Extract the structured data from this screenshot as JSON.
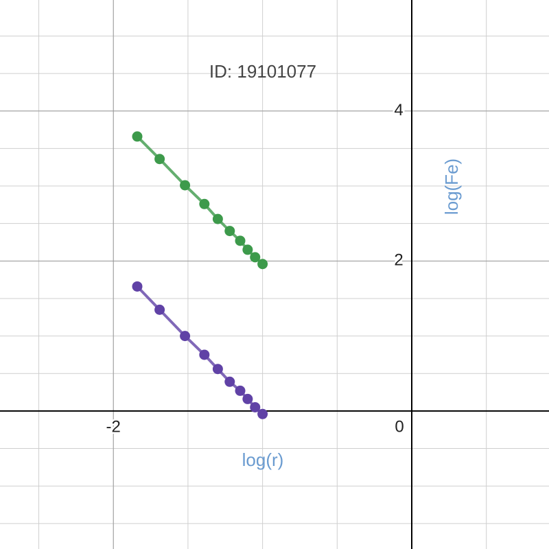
{
  "chart_data": {
    "type": "scatter",
    "title": "ID: 19101077",
    "x_label": "log(r)",
    "y_label": "log(Fe)",
    "label_color": "#6a9bd0",
    "xlim": [
      -2.76,
      0.92
    ],
    "ylim": [
      -1.84,
      5.48
    ],
    "xticks": [
      -2,
      0
    ],
    "yticks": [
      2,
      4
    ],
    "xgrid": [
      -2.5,
      -2,
      -1.5,
      -1,
      -0.5,
      0.5
    ],
    "ygrid": [
      -1.5,
      -1,
      -0.5,
      0.5,
      1,
      1.5,
      2,
      2.5,
      3,
      3.5,
      4,
      4.5,
      5
    ],
    "connect": true,
    "series": [
      {
        "color": "#3d9a4b",
        "x": [
          -1.84,
          -1.69,
          -1.52,
          -1.39,
          -1.3,
          -1.22,
          -1.15,
          -1.1,
          -1.05,
          -1.0
        ],
        "values": [
          3.66,
          3.36,
          3.01,
          2.76,
          2.56,
          2.4,
          2.27,
          2.15,
          2.05,
          1.96
        ]
      },
      {
        "color": "#6042a6",
        "x": [
          -1.84,
          -1.69,
          -1.52,
          -1.39,
          -1.3,
          -1.22,
          -1.15,
          -1.1,
          -1.05,
          -1.0
        ],
        "values": [
          1.66,
          1.35,
          1.0,
          0.75,
          0.56,
          0.39,
          0.27,
          0.16,
          0.05,
          -0.04
        ]
      }
    ]
  }
}
